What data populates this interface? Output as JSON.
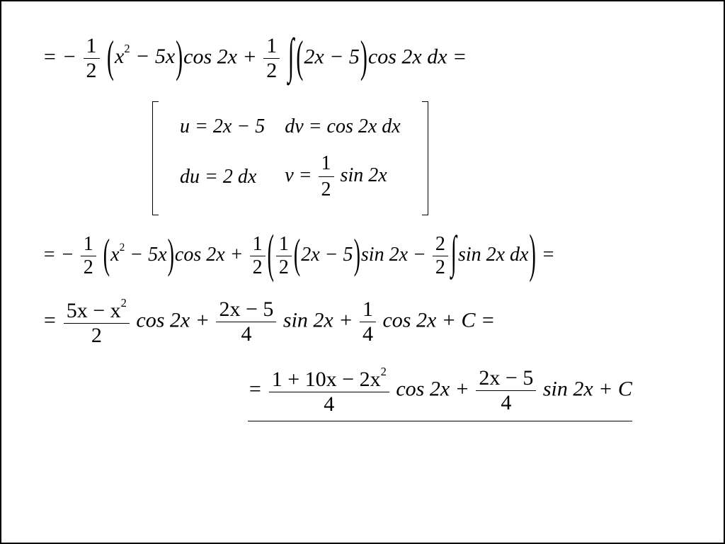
{
  "line1": {
    "a": "= −",
    "frac1_num": "1",
    "frac1_den": "2",
    "p1": "x",
    "p1sup": "2",
    "p2": " − 5x",
    "p3": "cos 2x + ",
    "frac2_num": "1",
    "frac2_den": "2",
    "int": "∫",
    "p4": "2x − 5",
    "p5": "cos 2x dx ="
  },
  "subst": {
    "u": "u = 2x − 5",
    "dv": "dv = cos 2x dx",
    "du": "du = 2 dx",
    "v_pre": "v = ",
    "v_num": "1",
    "v_den": "2",
    "v_post": " sin 2x"
  },
  "line3": {
    "a": "= −",
    "f1n": "1",
    "f1d": "2",
    "b": "x",
    "bsup": "2",
    "c": " − 5x",
    "d": "cos 2x + ",
    "f2n": "1",
    "f2d": "2",
    "f3n": "1",
    "f3d": "2",
    "e": "2x − 5",
    "f": "sin 2x − ",
    "f4n": "2",
    "f4d": "2",
    "int": "∫",
    "g": "sin 2x dx",
    "h": " ="
  },
  "line4": {
    "eq": "= ",
    "f1n": "5x − x",
    "f1nsup": "2",
    "f1d": "2",
    "a": " cos 2x + ",
    "f2n": "2x − 5",
    "f2d": "4",
    "b": " sin 2x + ",
    "f3n": "1",
    "f3d": "4",
    "c": " cos 2x + C ="
  },
  "line5": {
    "eq": "= ",
    "f1n_a": "1 + 10x − 2x",
    "f1n_sup": "2",
    "f1d": "4",
    "a": " cos 2x + ",
    "f2n": "2x − 5",
    "f2d": "4",
    "b": " sin 2x + C"
  }
}
